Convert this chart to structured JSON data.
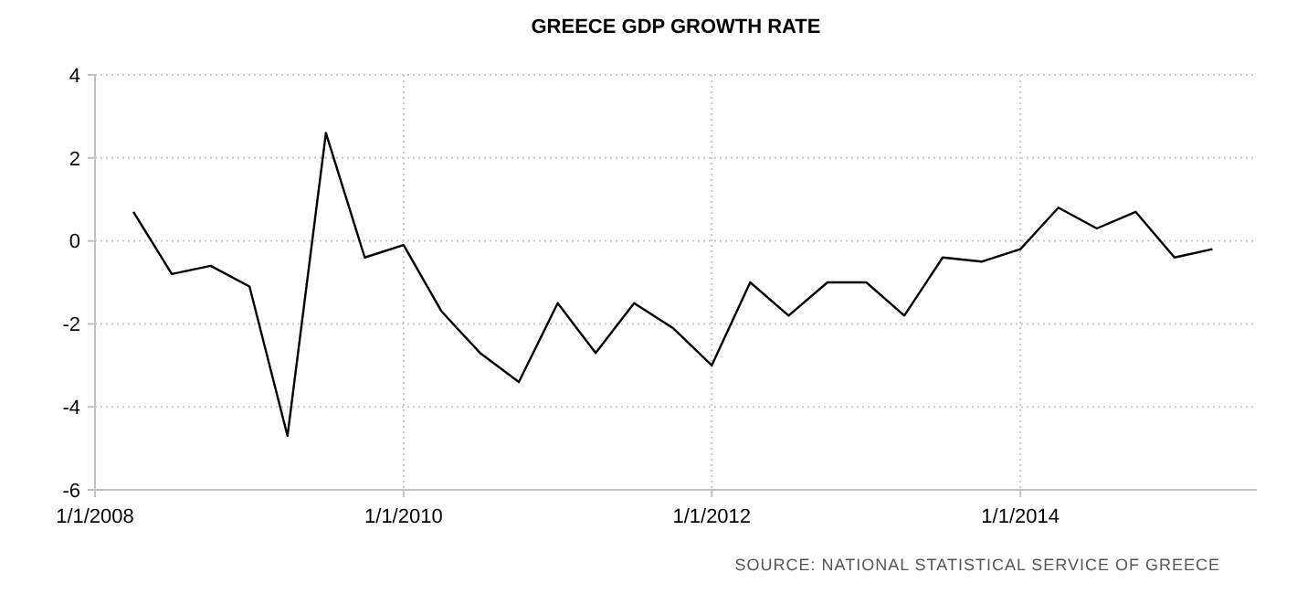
{
  "chart_data": {
    "type": "line",
    "title": "GREECE GDP GROWTH RATE",
    "x": [
      "2008-04-01",
      "2008-07-01",
      "2008-10-01",
      "2009-01-01",
      "2009-04-01",
      "2009-07-01",
      "2009-10-01",
      "2010-01-01",
      "2010-04-01",
      "2010-07-01",
      "2010-10-01",
      "2011-01-01",
      "2011-04-01",
      "2011-07-01",
      "2011-10-01",
      "2012-01-01",
      "2012-04-01",
      "2012-07-01",
      "2012-10-01",
      "2013-01-01",
      "2013-04-01",
      "2013-07-01",
      "2013-10-01",
      "2014-01-01",
      "2014-04-01",
      "2014-07-01",
      "2014-10-01",
      "2015-01-01",
      "2015-04-01"
    ],
    "series": [
      {
        "color": "#000000",
        "values": [
          0.7,
          -0.8,
          -0.6,
          -1.1,
          -4.7,
          2.6,
          -0.4,
          -0.1,
          -1.7,
          -2.7,
          -3.4,
          -1.5,
          -2.7,
          -1.5,
          -2.1,
          -3.0,
          -1.0,
          -1.8,
          -1.0,
          -1.0,
          -1.8,
          -0.4,
          -0.5,
          -0.2,
          0.8,
          0.3,
          0.7,
          -0.4,
          -0.2
        ]
      }
    ],
    "xlim": [
      "2008-01-01",
      "2015-07-15"
    ],
    "xticks": [
      {
        "value": "2008-01-01",
        "label": "1/1/2008"
      },
      {
        "value": "2010-01-01",
        "label": "1/1/2010"
      },
      {
        "value": "2012-01-01",
        "label": "1/1/2012"
      },
      {
        "value": "2014-01-01",
        "label": "1/1/2014"
      }
    ],
    "ylim": [
      -6,
      4
    ],
    "yticks": [
      -6,
      -4,
      -2,
      0,
      2,
      4
    ],
    "grid": true,
    "annotations": [
      "SOURCE: NATIONAL STATISTICAL SERVICE OF GREECE"
    ]
  }
}
